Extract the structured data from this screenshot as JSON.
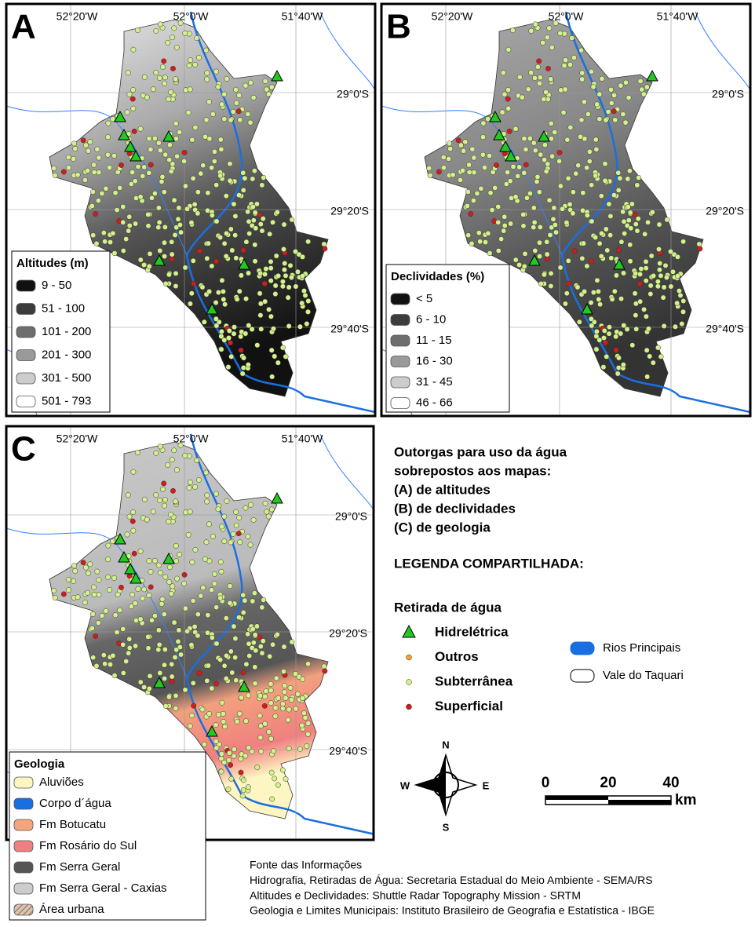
{
  "maps": [
    {
      "letter": "A",
      "lon_labels": [
        "52°20'W",
        "52°0'W",
        "51°40'W"
      ],
      "lat_labels": [
        "29°0'S",
        "29°20'S",
        "29°40'S"
      ],
      "legend": {
        "title": "Altitudes (m)",
        "items": [
          {
            "label": "9 - 50",
            "color": "#111111"
          },
          {
            "label": "51 - 100",
            "color": "#3c3c3c"
          },
          {
            "label": "101 - 200",
            "color": "#6e6e6e"
          },
          {
            "label": "201 - 300",
            "color": "#9a9a9a"
          },
          {
            "label": "301 - 500",
            "color": "#cccccc"
          },
          {
            "label": "501 - 793",
            "color": "#ffffff"
          }
        ]
      }
    },
    {
      "letter": "B",
      "lon_labels": [
        "52°20'W",
        "52°0'W",
        "51°40'W"
      ],
      "lat_labels": [
        "29°0'S",
        "29°20'S",
        "29°40'S"
      ],
      "legend": {
        "title": "Declividades (%)",
        "items": [
          {
            "label": "< 5",
            "color": "#111111"
          },
          {
            "label": "6 - 10",
            "color": "#3c3c3c"
          },
          {
            "label": "11 - 15",
            "color": "#6e6e6e"
          },
          {
            "label": "16 - 30",
            "color": "#9a9a9a"
          },
          {
            "label": "31 - 45",
            "color": "#cccccc"
          },
          {
            "label": "46 - 66",
            "color": "#ffffff"
          }
        ]
      }
    },
    {
      "letter": "C",
      "lon_labels": [
        "52°20'W",
        "52°0'W",
        "51°40'W"
      ],
      "lat_labels": [
        "29°0'S",
        "29°20'S",
        "29°40'S"
      ],
      "legend": {
        "title": "Geologia",
        "items": [
          {
            "label": "Aluviões",
            "color": "#fdf6c3"
          },
          {
            "label": "Corpo d´água",
            "color": "#1a6fe0"
          },
          {
            "label": "Fm Botucatu",
            "color": "#f5a57e"
          },
          {
            "label": "Fm Rosário do Sul",
            "color": "#f08080"
          },
          {
            "label": "Fm Serra Geral",
            "color": "#555555"
          },
          {
            "label": "Fm Serra Geral - Caxias",
            "color": "#cccccc"
          },
          {
            "label": "Área urbana",
            "color": "#b89a80"
          }
        ]
      }
    }
  ],
  "description": [
    "Outorgas para uso da água",
    "sobrepostos aos mapas:",
    "(A) de altitudes",
    "(B) de declividades",
    "(C) de geologia"
  ],
  "shared_legend": {
    "title": "LEGENDA COMPARTILHADA:",
    "subtitle": "Retirada de água",
    "withdrawals": [
      "Hidrelétrica",
      "Outros",
      "Subterrânea",
      "Superficial"
    ],
    "others": [
      "Rios Principais",
      "Vale do Taquari"
    ]
  },
  "compass": {
    "n": "N",
    "s": "S",
    "e": "E",
    "w": "W"
  },
  "scale": {
    "labels": [
      "0",
      "20",
      "40"
    ],
    "unit": "km"
  },
  "sources": [
    "Fonte das Informações",
    "Hidrografia, Retiradas de Água: Secretaria Estadual do Meio Ambiente - SEMA/RS",
    "Altitudes e Declividades: Shuttle Radar Topography Mission - SRTM",
    "Geologia e Limites Municipais: Instituto Brasileiro de Geografia e Estatística - IBGE"
  ]
}
